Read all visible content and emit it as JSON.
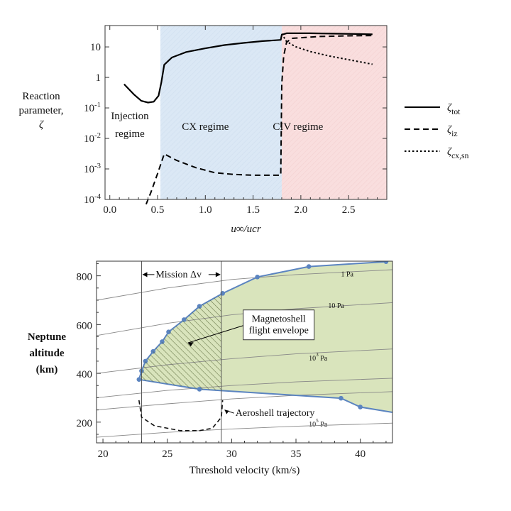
{
  "chart_data": [
    {
      "type": "line",
      "ylabel_lines": [
        "Reaction",
        "parameter,",
        "ζ"
      ],
      "xlabel": "u∞/ucr",
      "xlim": [
        -0.05,
        2.9
      ],
      "ylim_log10": [
        -4,
        1.7
      ],
      "x_ticks": [
        "0.0",
        "0.5",
        "1.0",
        "1.5",
        "2.0",
        "2.5"
      ],
      "y_ticks": [
        {
          "text": "10",
          "v": 10
        },
        {
          "text": "1",
          "v": 1
        },
        {
          "text": "10",
          "sup": "-1",
          "v": 0.1
        },
        {
          "text": "10",
          "sup": "-2",
          "v": 0.01
        },
        {
          "text": "10",
          "sup": "-3",
          "v": 0.001
        },
        {
          "text": "10",
          "sup": "-4",
          "v": 0.0001
        }
      ],
      "regions": [
        {
          "label_lines": [
            "Injection",
            "regime"
          ],
          "from": -0.05,
          "to": 0.53,
          "color": "#ffffff"
        },
        {
          "label_lines": [
            "CX regime"
          ],
          "from": 0.53,
          "to": 1.8,
          "color": "#dbe8f5"
        },
        {
          "label_lines": [
            "CIV regime"
          ],
          "from": 1.8,
          "to": 2.9,
          "color": "#f9dede"
        }
      ],
      "series": [
        {
          "name": "ζ",
          "sub": "tot",
          "style": "solid",
          "points": [
            [
              0.15,
              0.6
            ],
            [
              0.25,
              0.28
            ],
            [
              0.33,
              0.17
            ],
            [
              0.4,
              0.15
            ],
            [
              0.46,
              0.16
            ],
            [
              0.51,
              0.25
            ],
            [
              0.54,
              0.7
            ],
            [
              0.57,
              2.6
            ],
            [
              0.65,
              4.5
            ],
            [
              0.8,
              6.8
            ],
            [
              1.0,
              9.0
            ],
            [
              1.2,
              11.5
            ],
            [
              1.4,
              13.5
            ],
            [
              1.6,
              15.5
            ],
            [
              1.79,
              17.0
            ],
            [
              1.8,
              25.0
            ],
            [
              1.85,
              28.0
            ],
            [
              2.1,
              28.0
            ],
            [
              2.4,
              27.0
            ],
            [
              2.75,
              26.0
            ]
          ]
        },
        {
          "name": "ζ",
          "sub": "iz",
          "style": "dashed",
          "points": [
            [
              0.38,
              7e-05
            ],
            [
              0.43,
              0.00017
            ],
            [
              0.5,
              0.0007
            ],
            [
              0.57,
              0.0031
            ],
            [
              0.7,
              0.0019
            ],
            [
              0.9,
              0.0011
            ],
            [
              1.1,
              0.00075
            ],
            [
              1.3,
              0.00066
            ],
            [
              1.5,
              0.00062
            ],
            [
              1.79,
              0.00062
            ],
            [
              1.8,
              0.6
            ],
            [
              1.82,
              5.0
            ],
            [
              1.85,
              14.0
            ],
            [
              1.9,
              19.0
            ],
            [
              2.2,
              22.0
            ],
            [
              2.5,
              23.0
            ],
            [
              2.75,
              23.5
            ]
          ]
        },
        {
          "name": "ζ",
          "sub": "cx,sn",
          "style": "dotted",
          "points": [
            [
              1.8,
              27.0
            ],
            [
              1.85,
              15.0
            ],
            [
              1.95,
              10.0
            ],
            [
              2.1,
              7.0
            ],
            [
              2.3,
              5.0
            ],
            [
              2.5,
              3.8
            ],
            [
              2.75,
              2.7
            ]
          ]
        }
      ]
    },
    {
      "type": "area",
      "ylabel_lines": [
        "Neptune",
        "altitude",
        "(km)"
      ],
      "xlabel": "Threshold velocity (km/s)",
      "xlim": [
        19.5,
        42.5
      ],
      "ylim": [
        115,
        860
      ],
      "x_ticks": [
        20,
        25,
        30,
        35,
        40
      ],
      "y_ticks": [
        200,
        400,
        600,
        800
      ],
      "mission_dv": {
        "label": "Mission Δv",
        "x_from": 23,
        "x_to": 29.2
      },
      "envelope_label_lines": [
        "Magnetoshell",
        "flight envelope"
      ],
      "aeroshell_label": "Aeroshell trajectory",
      "isobars": [
        {
          "text": "1 Pa",
          "points": [
            [
              19.5,
              700
            ],
            [
              25,
              750
            ],
            [
              30,
              785
            ],
            [
              35,
              805
            ],
            [
              42.5,
              825
            ]
          ],
          "label_at": [
            38.5,
            797
          ]
        },
        {
          "text": "10 Pa",
          "points": [
            [
              19.5,
              555
            ],
            [
              25,
              605
            ],
            [
              30,
              640
            ],
            [
              35,
              665
            ],
            [
              42.5,
              690
            ]
          ],
          "label_at": [
            37.5,
            668
          ]
        },
        {
          "text": "10",
          "sup": "3",
          "points": [
            [
              19.5,
              400
            ],
            [
              25,
              435
            ],
            [
              30,
              460
            ],
            [
              35,
              480
            ],
            [
              42.5,
              500
            ]
          ],
          "label_at": [
            36.0,
            452
          ],
          "suffix": " Pa"
        },
        {
          "text": "10",
          "sup": "5",
          "points": [
            [
              19.5,
              250
            ],
            [
              25,
              275
            ],
            [
              30,
              295
            ],
            [
              35,
              310
            ],
            [
              42.5,
              325
            ]
          ],
          "label_at": [
            36.0,
            182
          ],
          "suffix": " Pa"
        },
        {
          "text": "",
          "points": [
            [
              19.5,
              138
            ],
            [
              25,
              158
            ],
            [
              30,
              172
            ],
            [
              35,
              183
            ],
            [
              42.5,
              196
            ]
          ]
        },
        {
          "text": "",
          "points": [
            [
              19.5,
              300
            ],
            [
              25,
              330
            ],
            [
              30,
              350
            ],
            [
              35,
              365
            ],
            [
              42.5,
              380
            ]
          ]
        }
      ],
      "upper_boundary": [
        [
          22.8,
          375
        ],
        [
          23.0,
          410
        ],
        [
          23.3,
          450
        ],
        [
          23.9,
          490
        ],
        [
          24.6,
          530
        ],
        [
          25.1,
          570
        ],
        [
          26.3,
          620
        ],
        [
          27.5,
          675
        ],
        [
          29.3,
          728
        ],
        [
          32.0,
          795
        ],
        [
          36.0,
          838
        ],
        [
          42.0,
          858
        ]
      ],
      "lower_boundary": [
        [
          22.8,
          375
        ],
        [
          27.5,
          335
        ],
        [
          38.5,
          298
        ],
        [
          40.0,
          262
        ],
        [
          42.5,
          240
        ]
      ],
      "aeroshell_trajectory": [
        [
          22.8,
          290
        ],
        [
          23.0,
          220
        ],
        [
          24.0,
          185
        ],
        [
          26.0,
          165
        ],
        [
          27.5,
          165
        ],
        [
          28.5,
          175
        ],
        [
          29.2,
          220
        ],
        [
          29.3,
          290
        ]
      ]
    }
  ]
}
